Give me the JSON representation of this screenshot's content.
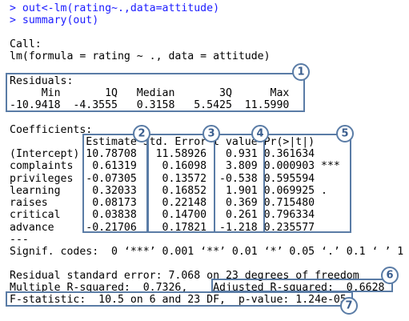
{
  "console": {
    "lines": [
      "> out<-lm(rating~.,data=attitude)",
      "> summary(out)",
      "Call:",
      "lm(formula = rating ~ ., data = attitude)",
      "Residuals:",
      "     Min       1Q   Median       3Q      Max ",
      "-10.9418  -4.3555   0.3158   5.5425  11.5990 ",
      "Coefficients:",
      "            Estimate Std. Error t value Pr(>|t|)    ",
      "(Intercept) 10.78708   11.58926   0.931 0.361634    ",
      "complaints   0.61319    0.16098   3.809 0.000903 ***",
      "privileges  -0.07305    0.13572  -0.538 0.595594    ",
      "learning     0.32033    0.16852   1.901 0.069925 .  ",
      "raises       0.08173    0.22148   0.369 0.715480    ",
      "critical     0.03838    0.14700   0.261 0.796334    ",
      "advance     -0.21706    0.17821  -1.218 0.235577    ",
      "---",
      "Signif. codes:  0 ‘***’ 0.001 ‘**’ 0.01 ‘*’ 0.05 ‘.’ 0.1 ‘ ’ 1",
      "Residual standard error: 7.068 on 23 degrees of freedom",
      "Multiple R-squared:  0.7326,\tAdjusted R-squared:  0.6628 ",
      "F-statistic:  10.5 on 6 and 23 DF,  p-value: 1.24e-05"
    ]
  },
  "callouts": [
    "1",
    "2",
    "3",
    "4",
    "5",
    "6",
    "7"
  ]
}
